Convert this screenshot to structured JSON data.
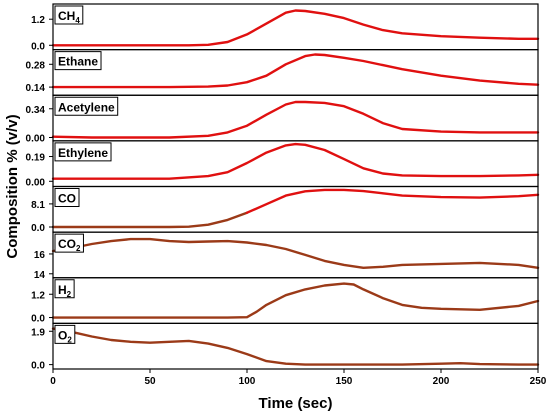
{
  "chart_data": {
    "type": "line",
    "ylabel": "Composition % (v/v)",
    "xlabel": "Time (sec)",
    "xlim": [
      0,
      250
    ],
    "xticks": [
      "0",
      "50",
      "100",
      "150",
      "200",
      "250"
    ],
    "grid": false,
    "panels": [
      {
        "label": "CH4",
        "label_main": "CH",
        "label_sub": "4",
        "ylim": [
          -0.2,
          1.9
        ],
        "yticks": [
          0.0,
          1.2
        ],
        "ytick_labels": [
          "0.0",
          "1.2"
        ],
        "series": [
          {
            "color": "#e01010",
            "x": [
              0,
              20,
              40,
              60,
              70,
              80,
              90,
              100,
              110,
              120,
              125,
              130,
              140,
              150,
              160,
              170,
              180,
              200,
              220,
              240,
              250
            ],
            "y": [
              0.0,
              0.0,
              0.0,
              0.0,
              0.0,
              0.02,
              0.15,
              0.5,
              1.0,
              1.5,
              1.6,
              1.58,
              1.45,
              1.25,
              0.95,
              0.7,
              0.55,
              0.42,
              0.35,
              0.3,
              0.3
            ]
          }
        ]
      },
      {
        "label": "Ethane",
        "label_main": "Ethane",
        "label_sub": "",
        "ylim": [
          0.09,
          0.37
        ],
        "yticks": [
          0.14,
          0.28
        ],
        "ytick_labels": [
          "0.14",
          "0.28"
        ],
        "series": [
          {
            "color": "#e01010",
            "x": [
              0,
              20,
              40,
              60,
              80,
              90,
              100,
              110,
              120,
              130,
              135,
              140,
              150,
              160,
              170,
              180,
              200,
              220,
              240,
              250
            ],
            "y": [
              0.14,
              0.14,
              0.14,
              0.14,
              0.143,
              0.15,
              0.17,
              0.21,
              0.28,
              0.33,
              0.34,
              0.337,
              0.32,
              0.3,
              0.275,
              0.25,
              0.21,
              0.18,
              0.16,
              0.155
            ]
          }
        ]
      },
      {
        "label": "Acetylene",
        "label_main": "Acetylene",
        "label_sub": "",
        "ylim": [
          -0.04,
          0.5
        ],
        "yticks": [
          0.0,
          0.34
        ],
        "ytick_labels": [
          "0.00",
          "0.34"
        ],
        "series": [
          {
            "color": "#e01010",
            "x": [
              0,
              20,
              40,
              60,
              80,
              90,
              100,
              110,
              120,
              125,
              130,
              140,
              150,
              160,
              170,
              180,
              200,
              220,
              240,
              250
            ],
            "y": [
              0.01,
              0.0,
              0.0,
              0.0,
              0.02,
              0.06,
              0.14,
              0.27,
              0.39,
              0.42,
              0.42,
              0.41,
              0.37,
              0.28,
              0.17,
              0.1,
              0.07,
              0.06,
              0.06,
              0.06
            ]
          }
        ]
      },
      {
        "label": "Ethylene",
        "label_main": "Ethylene",
        "label_sub": "",
        "ylim": [
          -0.04,
          0.31
        ],
        "yticks": [
          0.0,
          0.19
        ],
        "ytick_labels": [
          "0.00",
          "0.19"
        ],
        "series": [
          {
            "color": "#e01010",
            "x": [
              0,
              20,
              40,
              60,
              80,
              90,
              100,
              110,
              120,
              125,
              130,
              140,
              150,
              160,
              170,
              180,
              200,
              220,
              240,
              250
            ],
            "y": [
              0.02,
              0.02,
              0.02,
              0.02,
              0.04,
              0.07,
              0.14,
              0.22,
              0.275,
              0.285,
              0.28,
              0.24,
              0.17,
              0.1,
              0.06,
              0.045,
              0.04,
              0.04,
              0.045,
              0.05
            ]
          }
        ]
      },
      {
        "label": "CO",
        "label_main": "CO",
        "label_sub": "",
        "ylim": [
          -1.8,
          14.2
        ],
        "yticks": [
          0.0,
          8.1
        ],
        "ytick_labels": [
          "0.0",
          "8.1"
        ],
        "series": [
          {
            "color": "#9b3a18",
            "x": [
              0,
              20,
              40,
              60,
              70,
              80,
              90,
              100
            ],
            "y": [
              0.0,
              0.0,
              0.0,
              0.0,
              0.1,
              0.8,
              2.5,
              5.0
            ]
          },
          {
            "color": "#e01010",
            "x": [
              100,
              110,
              120,
              130,
              140,
              150,
              160,
              170,
              180,
              200,
              220,
              240,
              250
            ],
            "y": [
              5.0,
              8.0,
              11.0,
              12.5,
              13.0,
              13.0,
              12.6,
              11.8,
              11.0,
              10.5,
              10.3,
              10.8,
              11.3
            ]
          }
        ]
      },
      {
        "label": "CO2",
        "label_main": "CO",
        "label_sub": "2",
        "ylim": [
          13.6,
          18.2
        ],
        "yticks": [
          14,
          16
        ],
        "ytick_labels": [
          "14",
          "16"
        ],
        "series": [
          {
            "color": "#9b3a18",
            "x": [
              0,
              10,
              20,
              30,
              40,
              50,
              60,
              70,
              80,
              90,
              100,
              110,
              120,
              130,
              140,
              150,
              160,
              170,
              180,
              200,
              220,
              240,
              250
            ],
            "y": [
              16.3,
              16.6,
              17.0,
              17.3,
              17.5,
              17.5,
              17.3,
              17.2,
              17.25,
              17.3,
              17.15,
              16.9,
              16.5,
              15.9,
              15.3,
              14.9,
              14.6,
              14.7,
              14.9,
              15.0,
              15.1,
              14.9,
              14.6
            ]
          }
        ]
      },
      {
        "label": "H2",
        "label_main": "H",
        "label_sub": "2",
        "ylim": [
          -0.3,
          2.05
        ],
        "yticks": [
          0.0,
          1.2
        ],
        "ytick_labels": [
          "0.0",
          "1.2"
        ],
        "series": [
          {
            "color": "#9b3a18",
            "x": [
              0,
              20,
              40,
              60,
              80,
              90,
              100,
              105,
              110,
              120,
              130,
              140,
              150,
              155,
              160,
              170,
              180,
              190,
              200,
              220,
              240,
              250
            ],
            "y": [
              0.0,
              0.0,
              0.0,
              0.0,
              0.0,
              0.0,
              0.02,
              0.3,
              0.65,
              1.15,
              1.45,
              1.65,
              1.75,
              1.7,
              1.45,
              1.0,
              0.65,
              0.5,
              0.45,
              0.4,
              0.6,
              0.85
            ]
          }
        ]
      },
      {
        "label": "O2",
        "label_main": "O",
        "label_sub": "2",
        "ylim": [
          -0.25,
          2.35
        ],
        "yticks": [
          0.0,
          1.9
        ],
        "ytick_labels": [
          "0.0",
          "1.9"
        ],
        "series": [
          {
            "color": "#9b3a18",
            "x": [
              0,
              10,
              20,
              30,
              40,
              50,
              60,
              70,
              80,
              90,
              100,
              110,
              120,
              130,
              140,
              160,
              180,
              200,
              210,
              220,
              240,
              250
            ],
            "y": [
              2.05,
              1.85,
              1.6,
              1.4,
              1.3,
              1.25,
              1.3,
              1.35,
              1.2,
              0.95,
              0.6,
              0.2,
              0.05,
              0.0,
              0.0,
              0.0,
              0.0,
              0.05,
              0.08,
              0.03,
              0.0,
              0.0
            ]
          }
        ]
      }
    ]
  }
}
